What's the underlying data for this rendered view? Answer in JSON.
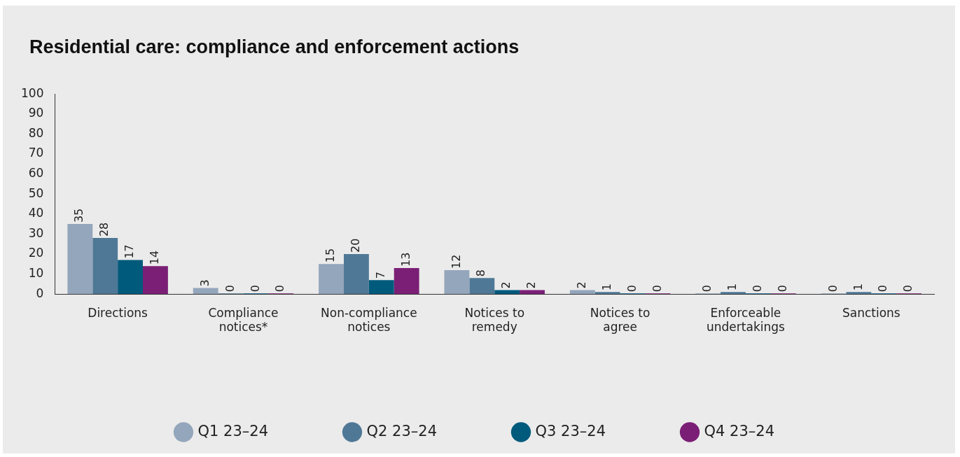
{
  "chart_data": {
    "type": "bar",
    "title": "Residential care: compliance and enforcement actions",
    "categories": [
      "Directions",
      "Compliance notices*",
      "Non-compliance notices",
      "Notices to remedy",
      "Notices to agree",
      "Enforceable undertakings",
      "Sanctions"
    ],
    "series": [
      {
        "name": "Q1 23–24",
        "color": "#94a6bb",
        "values": [
          35,
          3,
          15,
          12,
          2,
          0,
          0
        ]
      },
      {
        "name": "Q2 23–24",
        "color": "#4f7896",
        "values": [
          28,
          0,
          20,
          8,
          1,
          1,
          1
        ]
      },
      {
        "name": "Q3 23–24",
        "color": "#005a7c",
        "values": [
          17,
          0,
          7,
          2,
          0,
          0,
          0
        ]
      },
      {
        "name": "Q4 23–24",
        "color": "#7b1f76",
        "values": [
          14,
          0,
          13,
          2,
          0,
          0,
          0
        ]
      }
    ],
    "ylim": [
      0,
      100
    ],
    "yticks": [
      0,
      10,
      20,
      30,
      40,
      50,
      60,
      70,
      80,
      90,
      100
    ],
    "grid": false,
    "legend": "bottom",
    "data_labels": true
  }
}
